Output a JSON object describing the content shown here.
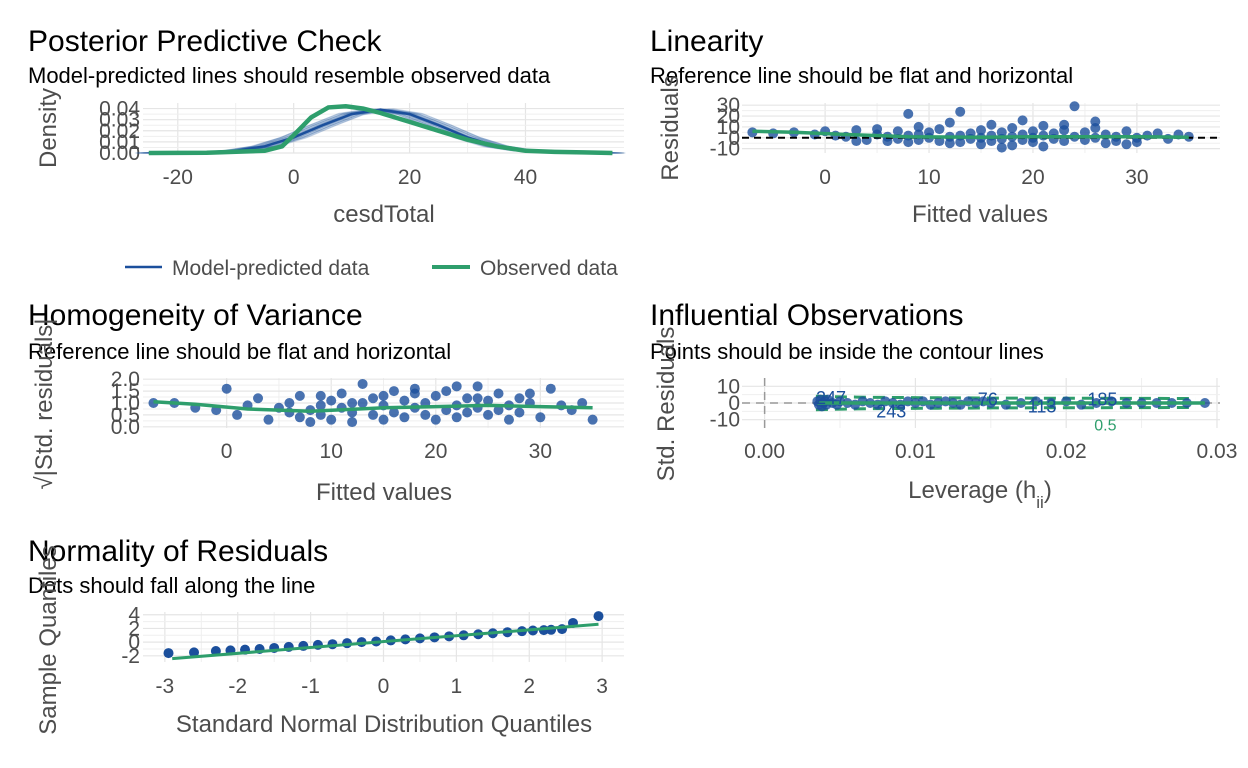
{
  "legend": {
    "items": [
      {
        "label": "Model-predicted data",
        "color": "#1b4f9c"
      },
      {
        "label": "Observed data",
        "color": "#2e9e6c"
      }
    ]
  },
  "colors": {
    "blue": "#1b4f9c",
    "green": "#2e9e6c",
    "grid": "#e5e5e5"
  },
  "chart_data": [
    {
      "id": "ppc",
      "type": "line",
      "title": "Posterior Predictive Check",
      "subtitle": "Model-predicted lines should resemble observed data",
      "xlabel": "cesdTotal",
      "ylabel": "Density",
      "xlim": [
        -26,
        57
      ],
      "ylim": [
        0,
        0.045
      ],
      "xticks": [
        -20,
        0,
        20,
        40
      ],
      "yticks": [
        0.0,
        0.01,
        0.02,
        0.03,
        0.04
      ],
      "ytick_labels": [
        "0.00",
        "0.01",
        "0.02",
        "0.03",
        "0.04"
      ],
      "grid": true,
      "legend_position": "bottom",
      "series": [
        {
          "name": "Model-predicted data",
          "x": [
            -25,
            -15,
            -10,
            -5,
            0,
            5,
            10,
            15,
            20,
            25,
            30,
            35,
            40,
            45,
            55
          ],
          "y": [
            0.0,
            0.0006,
            0.002,
            0.006,
            0.014,
            0.025,
            0.035,
            0.039,
            0.035,
            0.025,
            0.014,
            0.006,
            0.002,
            0.0006,
            0.0
          ]
        },
        {
          "name": "Observed data",
          "x": [
            -25,
            -15,
            -5,
            -2,
            0,
            3,
            6,
            9,
            12,
            15,
            20,
            25,
            30,
            35,
            40,
            45,
            50,
            55
          ],
          "y": [
            0.0,
            0.0003,
            0.002,
            0.006,
            0.016,
            0.032,
            0.041,
            0.042,
            0.04,
            0.036,
            0.028,
            0.02,
            0.012,
            0.006,
            0.002,
            0.001,
            0.0005,
            0.0
          ]
        }
      ]
    },
    {
      "id": "linearity",
      "type": "scatter",
      "title": "Linearity",
      "subtitle": "Reference line should be flat and horizontal",
      "xlabel": "Fitted values",
      "ylabel": "Residuals",
      "xlim": [
        -8,
        38
      ],
      "ylim": [
        -14,
        32
      ],
      "xticks": [
        0,
        10,
        20,
        30
      ],
      "yticks": [
        -10,
        0,
        10,
        20,
        30
      ],
      "grid": true,
      "reference_line": 0,
      "smooth": {
        "x": [
          -7,
          -3,
          2,
          8,
          15,
          20,
          25,
          30,
          35
        ],
        "y": [
          6,
          5,
          3,
          1,
          0.5,
          1,
          1,
          1,
          0.5
        ]
      },
      "points": [
        [
          -7,
          5
        ],
        [
          -5,
          4
        ],
        [
          -3,
          5
        ],
        [
          -1,
          3
        ],
        [
          0,
          6
        ],
        [
          1,
          2
        ],
        [
          2,
          1
        ],
        [
          3,
          7
        ],
        [
          4,
          -2
        ],
        [
          5,
          3
        ],
        [
          6,
          1
        ],
        [
          6,
          -3
        ],
        [
          7,
          -1
        ],
        [
          7,
          6
        ],
        [
          8,
          2
        ],
        [
          8,
          -4
        ],
        [
          9,
          3
        ],
        [
          9,
          -2
        ],
        [
          10,
          0
        ],
        [
          10,
          5
        ],
        [
          11,
          -3
        ],
        [
          11,
          8
        ],
        [
          12,
          1
        ],
        [
          12,
          -5
        ],
        [
          13,
          2
        ],
        [
          13,
          24
        ],
        [
          14,
          -1
        ],
        [
          14,
          4
        ],
        [
          15,
          0
        ],
        [
          15,
          -6
        ],
        [
          15,
          7
        ],
        [
          16,
          2
        ],
        [
          16,
          -3
        ],
        [
          17,
          5
        ],
        [
          17,
          -1
        ],
        [
          18,
          1
        ],
        [
          18,
          -7
        ],
        [
          18,
          9
        ],
        [
          19,
          3
        ],
        [
          19,
          -2
        ],
        [
          20,
          0
        ],
        [
          20,
          6
        ],
        [
          20,
          -4
        ],
        [
          21,
          2
        ],
        [
          21,
          -8
        ],
        [
          22,
          4
        ],
        [
          22,
          -1
        ],
        [
          23,
          7
        ],
        [
          23,
          -3
        ],
        [
          24,
          29
        ],
        [
          24,
          1
        ],
        [
          25,
          -2
        ],
        [
          25,
          5
        ],
        [
          26,
          0
        ],
        [
          26,
          9
        ],
        [
          27,
          -5
        ],
        [
          27,
          3
        ],
        [
          28,
          1
        ],
        [
          28,
          -3
        ],
        [
          29,
          6
        ],
        [
          30,
          0
        ],
        [
          30,
          -4
        ],
        [
          31,
          2
        ],
        [
          32,
          4
        ],
        [
          33,
          -1
        ],
        [
          34,
          3
        ],
        [
          35,
          1
        ],
        [
          3,
          -3
        ],
        [
          5,
          8
        ],
        [
          9,
          10
        ],
        [
          13,
          -4
        ],
        [
          16,
          12
        ],
        [
          21,
          11
        ],
        [
          26,
          15
        ],
        [
          29,
          -6
        ],
        [
          12,
          14
        ],
        [
          19,
          16
        ],
        [
          8,
          22
        ],
        [
          17,
          -9
        ],
        [
          23,
          12
        ]
      ]
    },
    {
      "id": "homogeneity",
      "type": "scatter",
      "title": "Homogeneity of Variance",
      "subtitle": "Reference line should be flat and horizontal",
      "xlabel": "Fitted values",
      "ylabel": "√|Std. residuals|",
      "xlim": [
        -8,
        38
      ],
      "ylim": [
        -0.05,
        2.05
      ],
      "xticks": [
        0,
        10,
        20,
        30
      ],
      "yticks": [
        0.0,
        0.5,
        1.0,
        1.5,
        2.0
      ],
      "ytick_labels": [
        "0.0",
        "0.5",
        "1.0",
        "1.5",
        "2.0"
      ],
      "grid": true,
      "smooth": {
        "x": [
          -7,
          -3,
          2,
          8,
          15,
          20,
          25,
          30,
          35
        ],
        "y": [
          1.05,
          0.95,
          0.75,
          0.65,
          0.8,
          0.85,
          0.9,
          0.85,
          0.8
        ]
      },
      "points": [
        [
          -7,
          1.0
        ],
        [
          -5,
          1.0
        ],
        [
          -3,
          0.8
        ],
        [
          -1,
          0.7
        ],
        [
          0,
          1.6
        ],
        [
          1,
          0.5
        ],
        [
          2,
          0.9
        ],
        [
          3,
          1.2
        ],
        [
          4,
          0.3
        ],
        [
          5,
          0.8
        ],
        [
          6,
          0.6
        ],
        [
          6,
          1.0
        ],
        [
          7,
          0.4
        ],
        [
          7,
          1.3
        ],
        [
          8,
          0.7
        ],
        [
          8,
          0.2
        ],
        [
          9,
          0.9
        ],
        [
          9,
          0.5
        ],
        [
          10,
          1.1
        ],
        [
          10,
          0.3
        ],
        [
          11,
          0.8
        ],
        [
          11,
          1.4
        ],
        [
          12,
          0.6
        ],
        [
          12,
          0.2
        ],
        [
          13,
          1.0
        ],
        [
          13,
          1.8
        ],
        [
          14,
          0.5
        ],
        [
          14,
          1.2
        ],
        [
          15,
          0.3
        ],
        [
          15,
          0.9
        ],
        [
          16,
          1.5
        ],
        [
          16,
          0.6
        ],
        [
          17,
          1.1
        ],
        [
          17,
          0.4
        ],
        [
          18,
          0.8
        ],
        [
          18,
          1.4
        ],
        [
          19,
          0.5
        ],
        [
          19,
          1.0
        ],
        [
          20,
          0.3
        ],
        [
          20,
          1.3
        ],
        [
          21,
          0.7
        ],
        [
          21,
          1.5
        ],
        [
          22,
          0.9
        ],
        [
          22,
          0.4
        ],
        [
          23,
          1.2
        ],
        [
          23,
          0.6
        ],
        [
          24,
          1.7
        ],
        [
          24,
          0.8
        ],
        [
          25,
          0.5
        ],
        [
          25,
          1.1
        ],
        [
          26,
          1.4
        ],
        [
          26,
          0.7
        ],
        [
          27,
          0.9
        ],
        [
          27,
          0.3
        ],
        [
          28,
          1.2
        ],
        [
          28,
          0.6
        ],
        [
          29,
          1.0
        ],
        [
          30,
          0.4
        ],
        [
          31,
          1.6
        ],
        [
          32,
          0.9
        ],
        [
          33,
          0.7
        ],
        [
          34,
          1.0
        ],
        [
          35,
          0.3
        ],
        [
          18,
          1.6
        ],
        [
          22,
          1.7
        ],
        [
          15,
          1.3
        ],
        [
          24,
          1.2
        ],
        [
          12,
          1.0
        ],
        [
          9,
          1.3
        ],
        [
          29,
          1.4
        ]
      ]
    },
    {
      "id": "influential",
      "type": "scatter",
      "title": "Influential Observations",
      "subtitle": "Points should be inside the contour lines",
      "xlabel": "Leverage (hii)",
      "ylabel": "Std. Residuals",
      "xlim": [
        -0.0015,
        0.0302
      ],
      "ylim": [
        -15,
        15
      ],
      "xticks": [
        0.0,
        0.01,
        0.02,
        0.03
      ],
      "xtick_labels": [
        "0.00",
        "0.01",
        "0.02",
        "0.03"
      ],
      "yticks": [
        -10,
        0,
        10
      ],
      "grid": true,
      "contour_levels": [
        "0.5"
      ],
      "labeled_points": [
        {
          "label": "247",
          "x": 0.0044,
          "y": 3
        },
        {
          "label": "243",
          "x": 0.0084,
          "y": -5
        },
        {
          "label": "76",
          "x": 0.0148,
          "y": 2
        },
        {
          "label": "113",
          "x": 0.0184,
          "y": -2
        },
        {
          "label": "185",
          "x": 0.0224,
          "y": 2
        }
      ],
      "points": [
        [
          0.0035,
          1
        ],
        [
          0.0036,
          -1
        ],
        [
          0.0037,
          2
        ],
        [
          0.0038,
          -2
        ],
        [
          0.0039,
          0
        ],
        [
          0.004,
          1
        ],
        [
          0.0041,
          -1
        ],
        [
          0.0042,
          2
        ],
        [
          0.0045,
          0
        ],
        [
          0.0048,
          -1
        ],
        [
          0.005,
          1
        ],
        [
          0.0055,
          0
        ],
        [
          0.006,
          -1
        ],
        [
          0.0065,
          1
        ],
        [
          0.007,
          0
        ],
        [
          0.0075,
          -1
        ],
        [
          0.008,
          1
        ],
        [
          0.0085,
          0
        ],
        [
          0.009,
          -1
        ],
        [
          0.0095,
          1
        ],
        [
          0.01,
          0
        ],
        [
          0.0105,
          1
        ],
        [
          0.011,
          -1
        ],
        [
          0.0115,
          0
        ],
        [
          0.012,
          1
        ],
        [
          0.0125,
          0
        ],
        [
          0.013,
          -1
        ],
        [
          0.0135,
          1
        ],
        [
          0.014,
          0
        ],
        [
          0.0145,
          1
        ],
        [
          0.015,
          0
        ],
        [
          0.016,
          -1
        ],
        [
          0.017,
          0
        ],
        [
          0.018,
          1
        ],
        [
          0.019,
          0
        ],
        [
          0.02,
          1
        ],
        [
          0.021,
          -1
        ],
        [
          0.022,
          0
        ],
        [
          0.023,
          1
        ],
        [
          0.024,
          0
        ],
        [
          0.025,
          0
        ],
        [
          0.026,
          0
        ],
        [
          0.027,
          0
        ],
        [
          0.028,
          0
        ],
        [
          0.0292,
          0
        ]
      ]
    },
    {
      "id": "normality",
      "type": "scatter",
      "title": "Normality of Residuals",
      "subtitle": "Dots should fall along the line",
      "xlabel": "Standard Normal Distribution Quantiles",
      "ylabel": "Sample Quantiles",
      "xlim": [
        -3.3,
        3.3
      ],
      "ylim": [
        -2.9,
        4.4
      ],
      "xticks": [
        -3,
        -2,
        -1,
        0,
        1,
        2,
        3
      ],
      "yticks": [
        -2,
        0,
        2,
        4
      ],
      "grid": true,
      "reference_line": {
        "x": [
          -2.9,
          2.95
        ],
        "y": [
          -2.4,
          2.6
        ]
      },
      "points": [
        [
          -2.95,
          -1.6
        ],
        [
          -2.6,
          -1.5
        ],
        [
          -2.3,
          -1.3
        ],
        [
          -2.1,
          -1.2
        ],
        [
          -1.9,
          -1.1
        ],
        [
          -1.7,
          -1.0
        ],
        [
          -1.5,
          -0.85
        ],
        [
          -1.3,
          -0.7
        ],
        [
          -1.1,
          -0.55
        ],
        [
          -0.9,
          -0.4
        ],
        [
          -0.7,
          -0.3
        ],
        [
          -0.5,
          -0.15
        ],
        [
          -0.3,
          0.0
        ],
        [
          -0.1,
          0.1
        ],
        [
          0.1,
          0.25
        ],
        [
          0.3,
          0.4
        ],
        [
          0.5,
          0.55
        ],
        [
          0.7,
          0.7
        ],
        [
          0.9,
          0.85
        ],
        [
          1.1,
          1.0
        ],
        [
          1.3,
          1.15
        ],
        [
          1.5,
          1.3
        ],
        [
          1.7,
          1.45
        ],
        [
          1.9,
          1.6
        ],
        [
          2.05,
          1.7
        ],
        [
          2.2,
          1.75
        ],
        [
          2.3,
          1.8
        ],
        [
          2.45,
          1.9
        ],
        [
          2.6,
          2.8
        ],
        [
          2.95,
          3.8
        ]
      ]
    }
  ]
}
